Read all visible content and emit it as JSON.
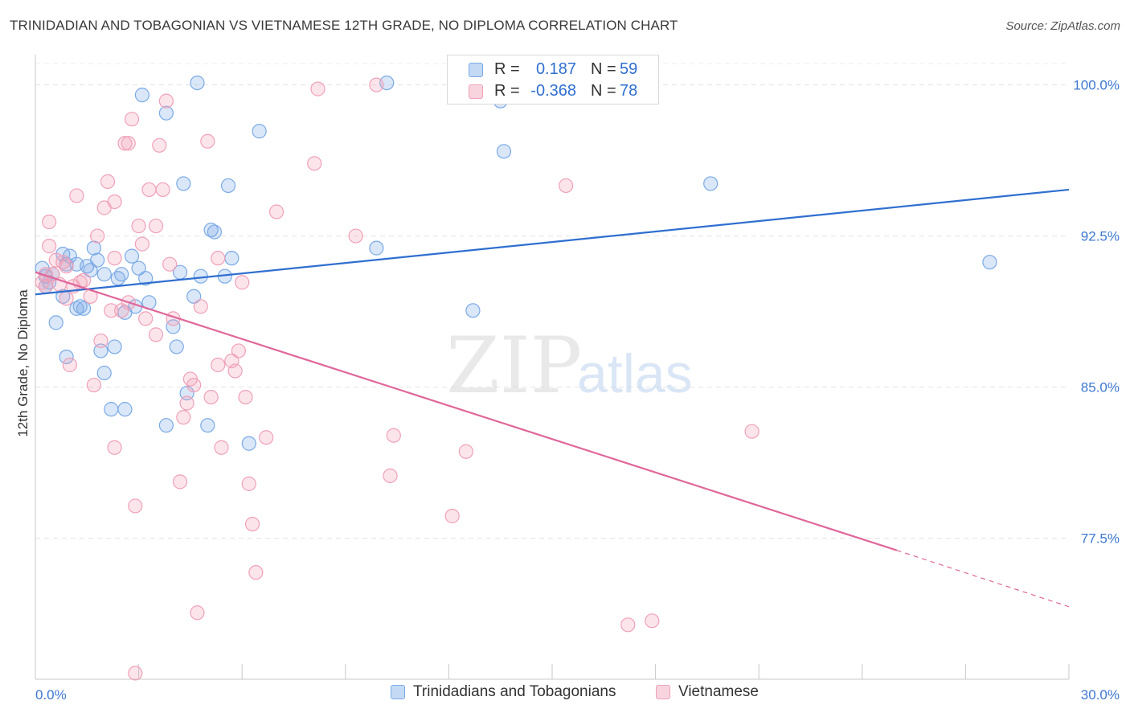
{
  "header": {
    "title": "TRINIDADIAN AND TOBAGONIAN VS VIETNAMESE 12TH GRADE, NO DIPLOMA CORRELATION CHART",
    "source": "Source: ZipAtlas.com"
  },
  "watermark": {
    "zip": "ZIP",
    "atlas": "atlas"
  },
  "stats": [
    {
      "r_label": "R =",
      "r_value": "0.187",
      "n_label": "N =",
      "n_value": "59",
      "color": "#7aaae6"
    },
    {
      "r_label": "R =",
      "r_value": "-0.368",
      "n_label": "N =",
      "n_value": "78",
      "color": "#f0a0b8"
    }
  ],
  "legend": [
    {
      "label": "Trinidadians and Tobagonians",
      "color": "#7aaae6"
    },
    {
      "label": "Vietnamese",
      "color": "#f0a0b8"
    }
  ],
  "chart_data": {
    "type": "scatter",
    "title": "TRINIDADIAN AND TOBAGONIAN VS VIETNAMESE 12TH GRADE, NO DIPLOMA CORRELATION CHART",
    "xlabel": "",
    "ylabel": "12th Grade, No Diploma",
    "xlim": [
      0,
      30
    ],
    "ylim": [
      70.5,
      101.5
    ],
    "x_tick_labels": [
      "0.0%",
      "30.0%"
    ],
    "y_ticks": [
      77.5,
      85.0,
      92.5,
      100.0
    ],
    "y_tick_labels": [
      "77.5%",
      "85.0%",
      "92.5%",
      "100.0%"
    ],
    "grid": true,
    "series": [
      {
        "name": "Trinidadians and Tobagonians",
        "color": "#7aaae6",
        "line_color": "#2f6fd0",
        "trend": {
          "x": [
            0,
            30
          ],
          "y": [
            89.6,
            94.8
          ]
        },
        "points": [
          [
            0.2,
            90.9
          ],
          [
            0.3,
            90.5
          ],
          [
            0.4,
            90.2
          ],
          [
            0.5,
            90.6
          ],
          [
            0.3,
            90.0
          ],
          [
            0.6,
            88.2
          ],
          [
            0.8,
            91.6
          ],
          [
            0.9,
            91.1
          ],
          [
            0.8,
            89.5
          ],
          [
            0.9,
            86.5
          ],
          [
            1.0,
            91.5
          ],
          [
            1.2,
            91.1
          ],
          [
            1.2,
            88.9
          ],
          [
            1.3,
            89.0
          ],
          [
            1.4,
            88.9
          ],
          [
            1.5,
            91.0
          ],
          [
            1.6,
            90.8
          ],
          [
            1.7,
            91.9
          ],
          [
            1.8,
            91.3
          ],
          [
            1.9,
            86.8
          ],
          [
            2.0,
            90.6
          ],
          [
            2.0,
            85.7
          ],
          [
            2.2,
            83.9
          ],
          [
            2.3,
            87.0
          ],
          [
            2.4,
            90.4
          ],
          [
            2.5,
            90.6
          ],
          [
            2.6,
            83.9
          ],
          [
            2.6,
            88.7
          ],
          [
            2.8,
            91.5
          ],
          [
            2.9,
            89.0
          ],
          [
            3.0,
            90.9
          ],
          [
            3.2,
            90.4
          ],
          [
            3.1,
            99.5
          ],
          [
            3.3,
            89.2
          ],
          [
            3.8,
            98.6
          ],
          [
            3.8,
            83.1
          ],
          [
            4.0,
            88.0
          ],
          [
            4.1,
            87.0
          ],
          [
            4.2,
            90.7
          ],
          [
            4.3,
            95.1
          ],
          [
            4.4,
            84.7
          ],
          [
            4.6,
            89.5
          ],
          [
            4.8,
            90.5
          ],
          [
            4.7,
            100.1
          ],
          [
            5.0,
            83.1
          ],
          [
            5.1,
            92.8
          ],
          [
            5.2,
            92.7
          ],
          [
            5.5,
            90.5
          ],
          [
            5.6,
            95.0
          ],
          [
            5.7,
            91.4
          ],
          [
            6.2,
            82.2
          ],
          [
            6.5,
            97.7
          ],
          [
            9.9,
            91.9
          ],
          [
            10.2,
            100.1
          ],
          [
            12.7,
            88.8
          ],
          [
            13.5,
            99.2
          ],
          [
            13.6,
            96.7
          ],
          [
            19.6,
            95.1
          ],
          [
            27.7,
            91.2
          ]
        ]
      },
      {
        "name": "Vietnamese",
        "color": "#f0a0b8",
        "line_color": "#e0679a",
        "trend": {
          "x": [
            0,
            25
          ],
          "y": [
            90.7,
            76.9
          ]
        },
        "trend_dashed": {
          "x": [
            25,
            30
          ],
          "y": [
            76.9,
            74.1
          ]
        },
        "points": [
          [
            0.2,
            90.2
          ],
          [
            0.3,
            90.0
          ],
          [
            0.4,
            92.0
          ],
          [
            0.4,
            93.2
          ],
          [
            0.5,
            90.6
          ],
          [
            0.6,
            91.3
          ],
          [
            0.7,
            90.1
          ],
          [
            0.8,
            91.2
          ],
          [
            0.9,
            91.0
          ],
          [
            0.9,
            89.4
          ],
          [
            1.0,
            86.1
          ],
          [
            1.1,
            90.0
          ],
          [
            1.2,
            94.5
          ],
          [
            1.3,
            90.2
          ],
          [
            1.4,
            90.3
          ],
          [
            1.6,
            89.5
          ],
          [
            1.7,
            85.1
          ],
          [
            1.8,
            92.5
          ],
          [
            1.9,
            87.3
          ],
          [
            2.0,
            93.9
          ],
          [
            2.1,
            95.2
          ],
          [
            2.2,
            88.8
          ],
          [
            2.3,
            91.4
          ],
          [
            2.3,
            94.2
          ],
          [
            2.3,
            82.0
          ],
          [
            2.5,
            88.8
          ],
          [
            2.6,
            97.1
          ],
          [
            2.7,
            97.1
          ],
          [
            2.7,
            89.2
          ],
          [
            2.8,
            98.3
          ],
          [
            2.9,
            79.1
          ],
          [
            2.9,
            70.8
          ],
          [
            3.0,
            93.0
          ],
          [
            3.1,
            92.1
          ],
          [
            3.2,
            88.4
          ],
          [
            3.3,
            94.8
          ],
          [
            3.5,
            93.0
          ],
          [
            3.5,
            87.6
          ],
          [
            3.6,
            97.0
          ],
          [
            3.7,
            94.8
          ],
          [
            3.8,
            99.2
          ],
          [
            3.9,
            91.1
          ],
          [
            4.0,
            88.4
          ],
          [
            4.2,
            80.3
          ],
          [
            4.3,
            83.5
          ],
          [
            4.4,
            84.2
          ],
          [
            4.5,
            85.4
          ],
          [
            4.6,
            85.1
          ],
          [
            4.7,
            73.8
          ],
          [
            4.8,
            89.0
          ],
          [
            5.0,
            97.2
          ],
          [
            5.1,
            84.5
          ],
          [
            5.3,
            86.1
          ],
          [
            5.3,
            91.4
          ],
          [
            5.4,
            82.0
          ],
          [
            5.7,
            86.3
          ],
          [
            5.8,
            85.8
          ],
          [
            5.9,
            86.8
          ],
          [
            6.0,
            90.2
          ],
          [
            6.1,
            84.5
          ],
          [
            6.2,
            80.2
          ],
          [
            6.3,
            78.2
          ],
          [
            6.4,
            75.8
          ],
          [
            6.7,
            82.5
          ],
          [
            7.0,
            93.7
          ],
          [
            8.1,
            96.1
          ],
          [
            8.2,
            99.8
          ],
          [
            9.3,
            92.5
          ],
          [
            9.9,
            100.0
          ],
          [
            10.3,
            80.6
          ],
          [
            10.4,
            82.6
          ],
          [
            12.1,
            78.6
          ],
          [
            12.5,
            81.8
          ],
          [
            15.4,
            95.0
          ],
          [
            17.2,
            73.2
          ],
          [
            17.9,
            73.4
          ],
          [
            20.8,
            82.8
          ],
          [
            0.3,
            90.6
          ]
        ]
      }
    ]
  }
}
